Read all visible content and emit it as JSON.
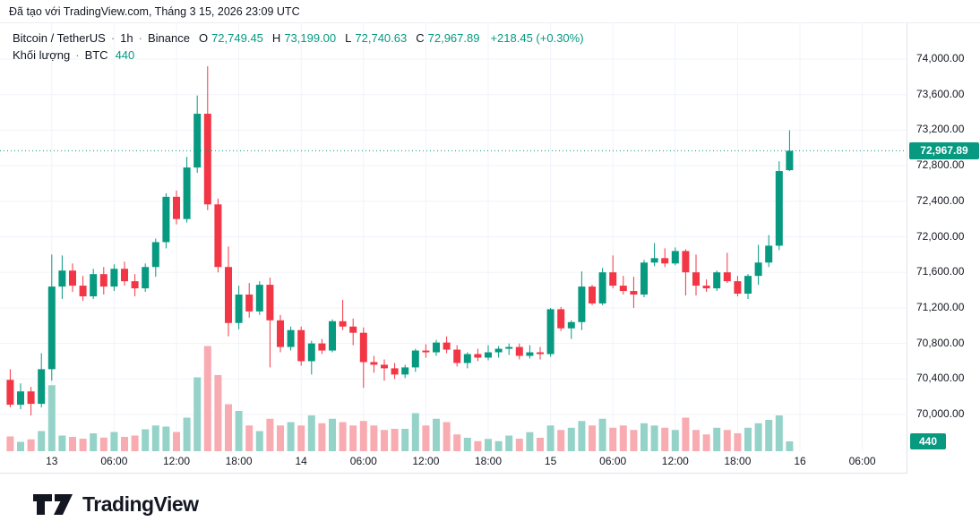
{
  "attribution": {
    "text": "Đã tạo với TradingView.com, Tháng 3 15, 2026 23:09 UTC"
  },
  "legend": {
    "symbol": "Bitcoin / TetherUS",
    "separator": "·",
    "interval": "1h",
    "exchange": "Binance",
    "ohlc": {
      "o_label": "O",
      "o": "72,749.45",
      "h_label": "H",
      "h": "73,199.00",
      "l_label": "L",
      "l": "72,740.63",
      "c_label": "C",
      "c": "72,967.89",
      "change": "+218.45 (+0.30%)"
    },
    "volume_label": "Khối lượng",
    "volume_unit": "BTC",
    "volume_value": "440"
  },
  "colors": {
    "up": "#089981",
    "down": "#F23645",
    "volume_up": "#95d3c9",
    "volume_down": "#f8abb1",
    "grid": "#f0f3fa",
    "axis_border": "#e0e3eb",
    "text": "#131722",
    "badge_text": "#ffffff"
  },
  "price_axis": {
    "ticks": [
      {
        "label": "74,000.00",
        "value": 74000
      },
      {
        "label": "73,600.00",
        "value": 73600
      },
      {
        "label": "73,200.00",
        "value": 73200
      },
      {
        "label": "72,800.00",
        "value": 72800
      },
      {
        "label": "72,400.00",
        "value": 72400
      },
      {
        "label": "72,000.00",
        "value": 72000
      },
      {
        "label": "71,600.00",
        "value": 71600
      },
      {
        "label": "71,200.00",
        "value": 71200
      },
      {
        "label": "70,800.00",
        "value": 70800
      },
      {
        "label": "70,400.00",
        "value": 70400
      },
      {
        "label": "70,000.00",
        "value": 70000
      }
    ],
    "current_price_badge": "72,967.89",
    "current_volume_badge": "440"
  },
  "time_axis": {
    "ticks": [
      {
        "index": 4,
        "label": "13"
      },
      {
        "index": 10,
        "label": "06:00"
      },
      {
        "index": 16,
        "label": "12:00"
      },
      {
        "index": 22,
        "label": "18:00"
      },
      {
        "index": 28,
        "label": "14"
      },
      {
        "index": 34,
        "label": "06:00"
      },
      {
        "index": 40,
        "label": "12:00"
      },
      {
        "index": 46,
        "label": "18:00"
      },
      {
        "index": 52,
        "label": "15"
      },
      {
        "index": 58,
        "label": "06:00"
      },
      {
        "index": 64,
        "label": "12:00"
      },
      {
        "index": 70,
        "label": "18:00"
      },
      {
        "index": 76,
        "label": "16"
      },
      {
        "index": 82,
        "label": "06:00"
      }
    ]
  },
  "chart_data": {
    "type": "candlestick+volume",
    "title": "Bitcoin / TetherUS · 1h · Binance",
    "symbol": "Bitcoin / TetherUS",
    "exchange": "Binance",
    "interval": "1h",
    "ylim": [
      70000,
      74000
    ],
    "grid": true,
    "current_price": 72967.89,
    "current_volume": 440,
    "candles": {
      "columns": [
        "time",
        "open",
        "high",
        "low",
        "close",
        "volume"
      ],
      "rows": [
        [
          "12 20:00",
          70390,
          70510,
          70080,
          70110,
          660
        ],
        [
          "12 21:00",
          70110,
          70350,
          70060,
          70260,
          420
        ],
        [
          "12 22:00",
          70260,
          70310,
          69990,
          70120,
          530
        ],
        [
          "12 23:00",
          70120,
          70690,
          70080,
          70510,
          900
        ],
        [
          "13 00:00",
          70510,
          71800,
          70380,
          71440,
          2950
        ],
        [
          "13 01:00",
          71440,
          71790,
          71300,
          71620,
          700
        ],
        [
          "13 02:00",
          71620,
          71700,
          71380,
          71450,
          640
        ],
        [
          "13 03:00",
          71450,
          71560,
          71280,
          71330,
          560
        ],
        [
          "13 04:00",
          71330,
          71640,
          71300,
          71580,
          800
        ],
        [
          "13 05:00",
          71580,
          71660,
          71350,
          71440,
          610
        ],
        [
          "13 06:00",
          71440,
          71690,
          71390,
          71640,
          860
        ],
        [
          "13 07:00",
          71640,
          71720,
          71450,
          71500,
          640
        ],
        [
          "13 08:00",
          71500,
          71580,
          71330,
          71420,
          700
        ],
        [
          "13 09:00",
          71420,
          71700,
          71380,
          71660,
          980
        ],
        [
          "13 10:00",
          71660,
          71980,
          71550,
          71940,
          1150
        ],
        [
          "13 11:00",
          71940,
          72490,
          71870,
          72450,
          1100
        ],
        [
          "13 12:00",
          72450,
          72520,
          72140,
          72200,
          860
        ],
        [
          "13 13:00",
          72200,
          72900,
          72160,
          72780,
          1500
        ],
        [
          "13 14:00",
          72780,
          73590,
          72720,
          73385,
          3300
        ],
        [
          "13 15:00",
          73385,
          73920,
          72300,
          72365,
          4700
        ],
        [
          "13 16:00",
          72365,
          72430,
          71600,
          71660,
          3400
        ],
        [
          "13 17:00",
          71660,
          71890,
          70880,
          71030,
          2100
        ],
        [
          "13 18:00",
          71030,
          71450,
          70960,
          71350,
          1800
        ],
        [
          "13 19:00",
          71350,
          71480,
          71090,
          71160,
          1150
        ],
        [
          "13 20:00",
          71160,
          71500,
          71120,
          71460,
          900
        ],
        [
          "13 21:00",
          71460,
          71540,
          70530,
          71060,
          1450
        ],
        [
          "13 22:00",
          71060,
          71120,
          70700,
          70760,
          1150
        ],
        [
          "13 23:00",
          70760,
          70990,
          70720,
          70950,
          1300
        ],
        [
          "14 00:00",
          70950,
          70990,
          70550,
          70600,
          1150
        ],
        [
          "14 01:00",
          70600,
          70830,
          70450,
          70800,
          1600
        ],
        [
          "14 02:00",
          70800,
          70850,
          70680,
          70720,
          1250
        ],
        [
          "14 03:00",
          70720,
          71070,
          70700,
          71050,
          1450
        ],
        [
          "14 04:00",
          71050,
          71290,
          70950,
          70990,
          1300
        ],
        [
          "14 05:00",
          70990,
          71080,
          70780,
          70920,
          1150
        ],
        [
          "14 06:00",
          70920,
          70980,
          70300,
          70590,
          1350
        ],
        [
          "14 07:00",
          70590,
          70660,
          70470,
          70560,
          1150
        ],
        [
          "14 08:00",
          70560,
          70620,
          70380,
          70520,
          950
        ],
        [
          "14 09:00",
          70520,
          70580,
          70400,
          70450,
          1000
        ],
        [
          "14 10:00",
          70450,
          70560,
          70410,
          70530,
          1000
        ],
        [
          "14 11:00",
          70530,
          70740,
          70480,
          70720,
          1700
        ],
        [
          "14 12:00",
          70720,
          70790,
          70640,
          70700,
          1150
        ],
        [
          "14 13:00",
          70700,
          70840,
          70660,
          70810,
          1450
        ],
        [
          "14 14:00",
          70810,
          70880,
          70690,
          70730,
          1300
        ],
        [
          "14 15:00",
          70730,
          70780,
          70540,
          70580,
          750
        ],
        [
          "14 16:00",
          70580,
          70700,
          70520,
          70680,
          600
        ],
        [
          "14 17:00",
          70680,
          70740,
          70600,
          70640,
          450
        ],
        [
          "14 18:00",
          70640,
          70780,
          70610,
          70700,
          550
        ],
        [
          "14 19:00",
          70700,
          70770,
          70640,
          70740,
          450
        ],
        [
          "14 20:00",
          70740,
          70800,
          70670,
          70760,
          700
        ],
        [
          "14 21:00",
          70760,
          70800,
          70620,
          70660,
          560
        ],
        [
          "14 22:00",
          70660,
          70780,
          70630,
          70700,
          850
        ],
        [
          "14 23:00",
          70700,
          70760,
          70620,
          70680,
          600
        ],
        [
          "15 00:00",
          70680,
          71200,
          70650,
          71185,
          1150
        ],
        [
          "15 01:00",
          71185,
          71210,
          70940,
          70970,
          950
        ],
        [
          "15 02:00",
          70970,
          71060,
          70850,
          71040,
          1050
        ],
        [
          "15 03:00",
          71040,
          71610,
          70950,
          71440,
          1350
        ],
        [
          "15 04:00",
          71440,
          71460,
          71230,
          71250,
          1150
        ],
        [
          "15 05:00",
          71250,
          71650,
          71230,
          71600,
          1450
        ],
        [
          "15 06:00",
          71600,
          71790,
          71420,
          71450,
          1050
        ],
        [
          "15 07:00",
          71450,
          71560,
          71350,
          71390,
          1150
        ],
        [
          "15 08:00",
          71390,
          71550,
          71200,
          71350,
          950
        ],
        [
          "15 09:00",
          71350,
          71740,
          71320,
          71710,
          1250
        ],
        [
          "15 10:00",
          71710,
          71930,
          71670,
          71760,
          1150
        ],
        [
          "15 11:00",
          71760,
          71870,
          71660,
          71700,
          1050
        ],
        [
          "15 12:00",
          71700,
          71880,
          71680,
          71840,
          950
        ],
        [
          "15 13:00",
          71840,
          71860,
          71340,
          71600,
          1500
        ],
        [
          "15 14:00",
          71600,
          71800,
          71340,
          71450,
          950
        ],
        [
          "15 15:00",
          71450,
          71520,
          71380,
          71420,
          750
        ],
        [
          "15 16:00",
          71420,
          71620,
          71390,
          71600,
          1050
        ],
        [
          "15 17:00",
          71600,
          71820,
          71480,
          71500,
          950
        ],
        [
          "15 18:00",
          71500,
          71560,
          71330,
          71360,
          800
        ],
        [
          "15 19:00",
          71360,
          71580,
          71300,
          71560,
          1050
        ],
        [
          "15 20:00",
          71560,
          71910,
          71460,
          71710,
          1250
        ],
        [
          "15 21:00",
          71710,
          72020,
          71660,
          71900,
          1400
        ],
        [
          "15 22:00",
          71900,
          72850,
          71850,
          72740,
          1600
        ],
        [
          "15 23:00",
          72749.45,
          73199.0,
          72740.63,
          72967.89,
          440
        ]
      ]
    }
  },
  "logo": {
    "text": "TradingView"
  }
}
